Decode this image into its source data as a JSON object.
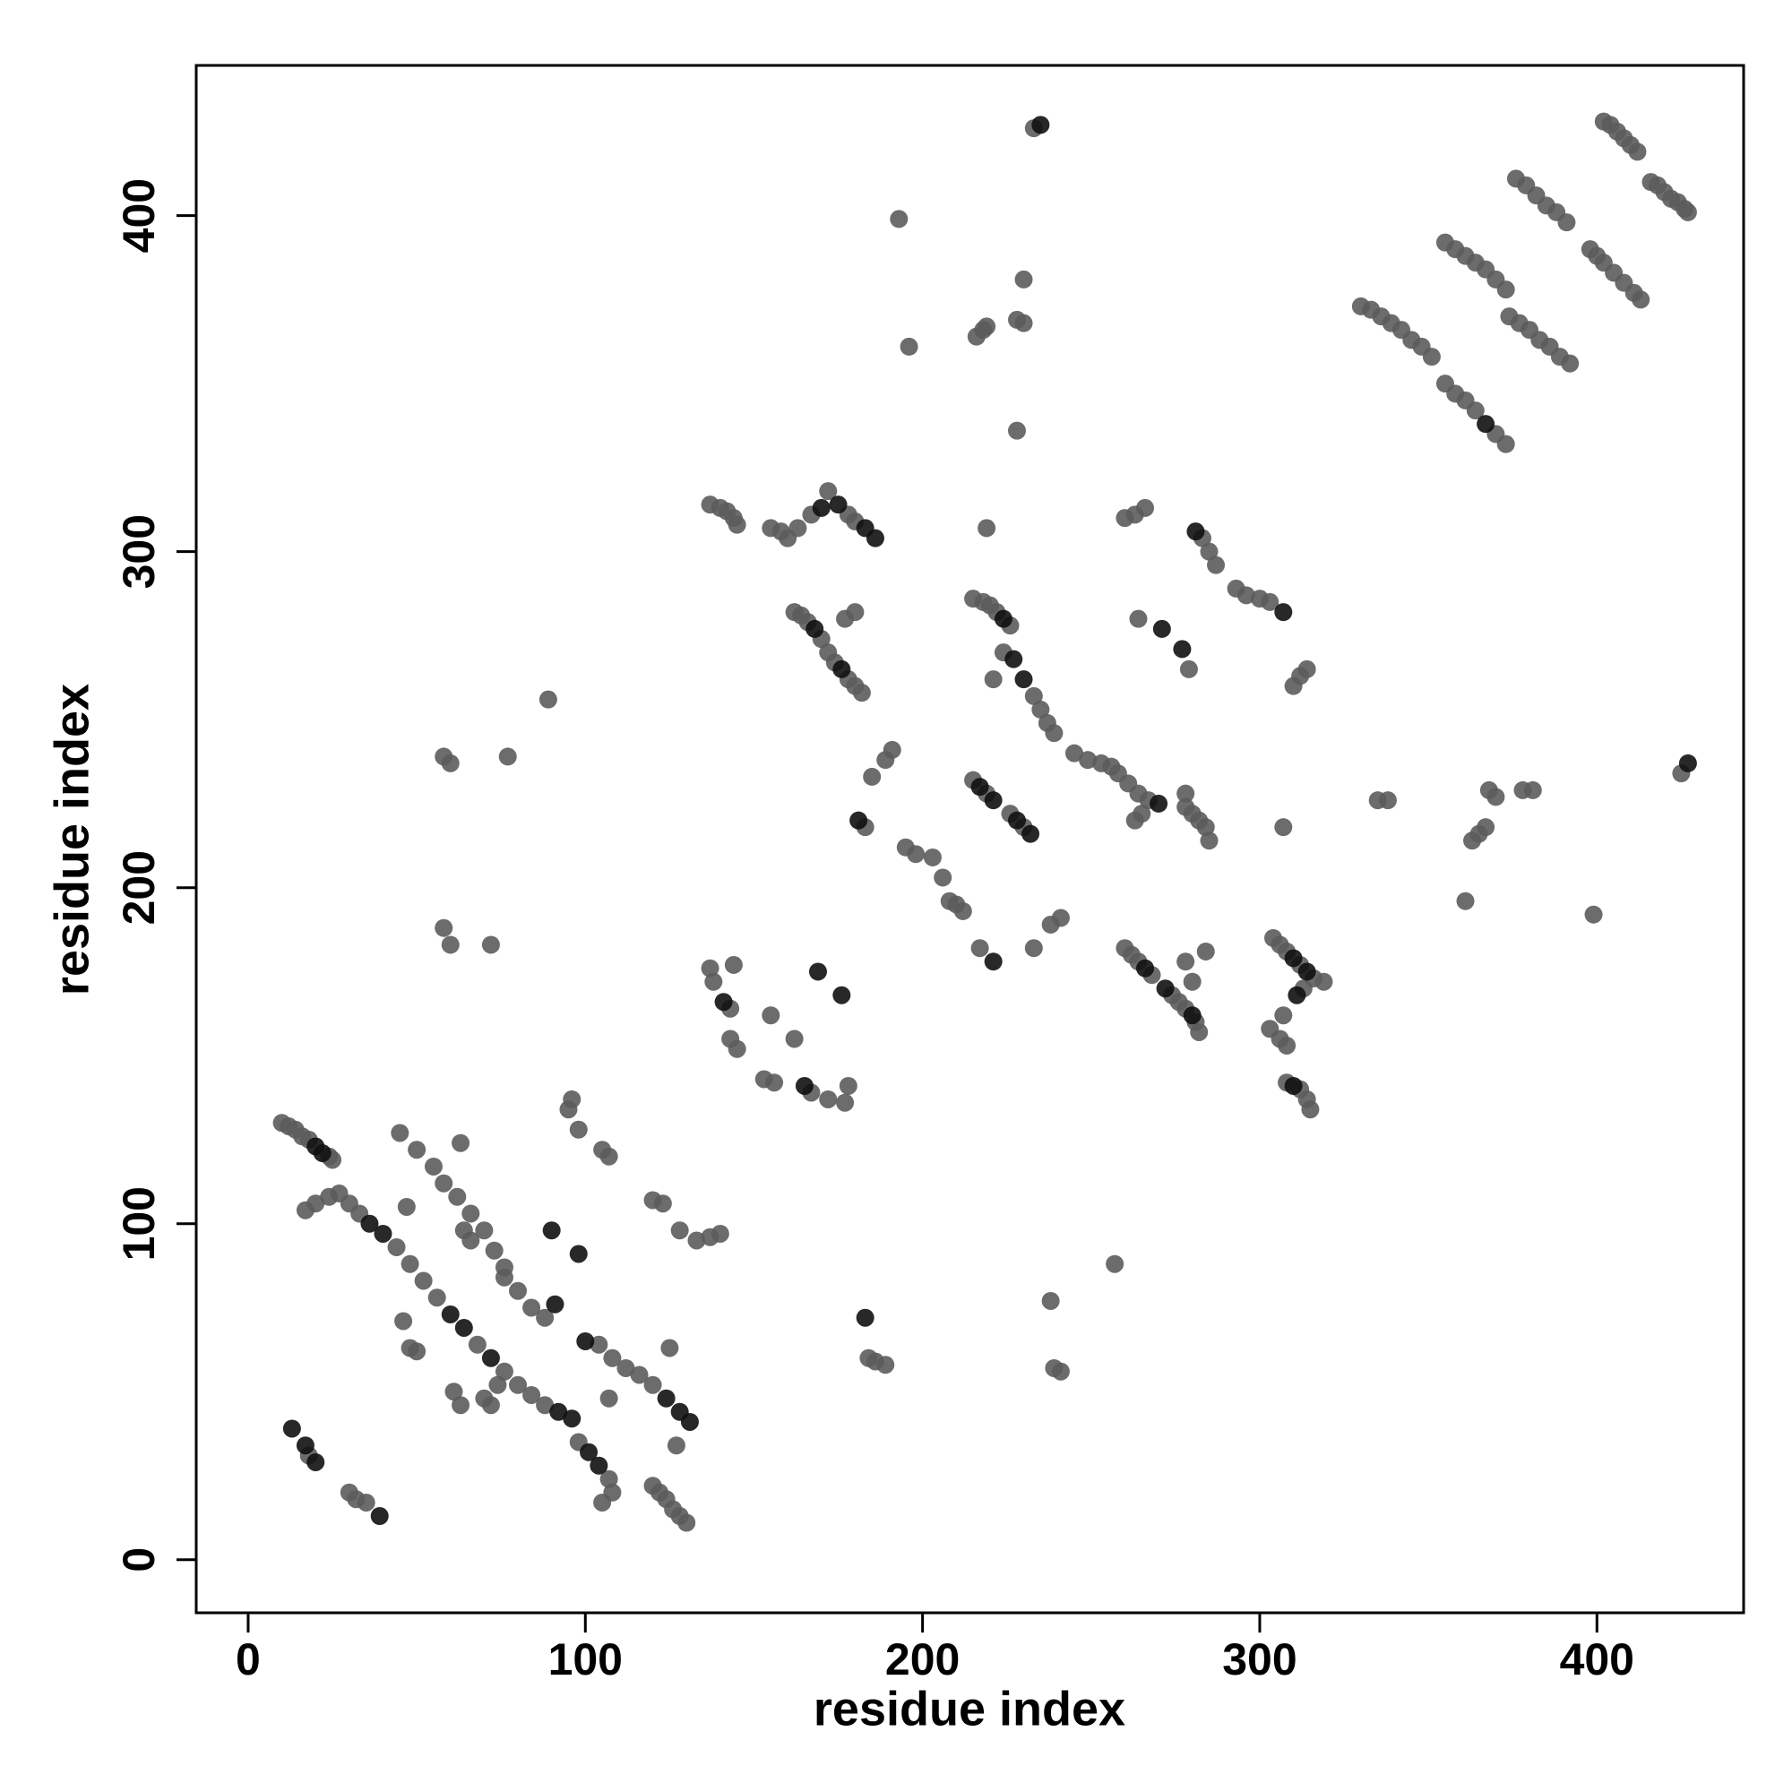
{
  "chart_data": {
    "type": "scatter",
    "xlabel": "residue index",
    "ylabel": "residue index",
    "xlim": [
      -15.4,
      443.5
    ],
    "ylim": [
      -15.8,
      444.7
    ],
    "xticks": [
      0,
      100,
      200,
      300,
      400
    ],
    "yticks": [
      0,
      100,
      200,
      300,
      400
    ],
    "series": [
      {
        "color": "#5c5c5c",
        "x": [
          10,
          12,
          14,
          16,
          18,
          24,
          25,
          17,
          20,
          24,
          27,
          30,
          33,
          45,
          50,
          55,
          58,
          62,
          66,
          70,
          73,
          76,
          80,
          84,
          88,
          104,
          108,
          112,
          116,
          120,
          44,
          48,
          52,
          56,
          68,
          76,
          80,
          84,
          88,
          98,
          107,
          108,
          105,
          120,
          122,
          124,
          126,
          128,
          130,
          18,
          30,
          32,
          35,
          46,
          48,
          50,
          47,
          63,
          64,
          66,
          70,
          72,
          74,
          76,
          96,
          98,
          105,
          107,
          107,
          120,
          123,
          125,
          127,
          128,
          133,
          137,
          140,
          63,
          61,
          72,
          58,
          60,
          58,
          60,
          77,
          89,
          95,
          137,
          138,
          143,
          144,
          143,
          145,
          153,
          155,
          156,
          162,
          167,
          172,
          177,
          178,
          184,
          186,
          189,
          137,
          140,
          142,
          144,
          145,
          155,
          158,
          160,
          163,
          167,
          172,
          178,
          180,
          162,
          164,
          166,
          170,
          172,
          174,
          178,
          180,
          182,
          177,
          180,
          183,
          185,
          189,
          191,
          193,
          196,
          195,
          198,
          203,
          206,
          208,
          210,
          212,
          215,
          218,
          220,
          222,
          226,
          219,
          221,
          224,
          233,
          235,
          237,
          239,
          216,
          218,
          219,
          228,
          230,
          230,
          228,
          233,
          215,
          219,
          226,
          230,
          217,
          233,
          238,
          241,
          238,
          239,
          241,
          257,
          245,
          249,
          253,
          256,
          258,
          261,
          264,
          267,
          263,
          265,
          278,
          280,
          282,
          284,
          285,
          278,
          264,
          279,
          260,
          262,
          264,
          268,
          274,
          276,
          278,
          281,
          282,
          284,
          278,
          280,
          260,
          263,
          266,
          283,
          285,
          287,
          293,
          296,
          300,
          303,
          310,
          312,
          314,
          307,
          304,
          306,
          308,
          312,
          316,
          319,
          313,
          307,
          303,
          306,
          308,
          308,
          312,
          314,
          315,
          330,
          333,
          336,
          339,
          342,
          345,
          348,
          351,
          355,
          358,
          361,
          364,
          367,
          370,
          373,
          355,
          358,
          361,
          364,
          370,
          373,
          376,
          379,
          382,
          385,
          388,
          391,
          374,
          377,
          380,
          383,
          386,
          389,
          392,
          402,
          404,
          406,
          408,
          410,
          412,
          398,
          400,
          402,
          405,
          408,
          411,
          413,
          416,
          418,
          420,
          422,
          424,
          426,
          427,
          335,
          338,
          361,
          363,
          365,
          367,
          368,
          370,
          378,
          381,
          399,
          425
        ],
        "y": [
          130,
          129,
          128,
          126,
          125,
          120,
          119,
          104,
          106,
          108,
          109,
          106,
          103,
          127,
          122,
          117,
          112,
          108,
          103,
          98,
          92,
          87,
          80,
          75,
          72,
          64,
          60,
          57,
          55,
          52,
          93,
          88,
          83,
          78,
          64,
          56,
          52,
          49,
          46,
          35,
          24,
          20,
          17,
          22,
          20,
          18,
          15,
          13,
          11,
          31,
          20,
          18,
          17,
          71,
          63,
          62,
          105,
          124,
          98,
          95,
          48,
          46,
          52,
          84,
          137,
          128,
          122,
          120,
          48,
          107,
          106,
          63,
          34,
          98,
          95,
          96,
          97,
          46,
          50,
          183,
          188,
          183,
          239,
          237,
          239,
          256,
          134,
          176,
          172,
          164,
          177,
          155,
          152,
          143,
          162,
          142,
          155,
          139,
          137,
          136,
          141,
          60,
          59,
          58,
          314,
          313,
          312,
          310,
          308,
          307,
          306,
          304,
          307,
          311,
          318,
          311,
          309,
          282,
          281,
          279,
          274,
          270,
          267,
          262,
          260,
          258,
          280,
          282,
          218,
          233,
          238,
          241,
          399,
          361,
          212,
          210,
          209,
          203,
          196,
          195,
          193,
          286,
          285,
          284,
          282,
          278,
          307,
          262,
          270,
          257,
          253,
          249,
          246,
          364,
          366,
          367,
          369,
          368,
          381,
          336,
          426,
          232,
          228,
          222,
          218,
          182,
          182,
          189,
          191,
          77,
          57,
          56,
          88,
          240,
          238,
          237,
          236,
          234,
          231,
          228,
          226,
          220,
          222,
          224,
          222,
          220,
          218,
          214,
          228,
          280,
          265,
          182,
          180,
          178,
          174,
          168,
          166,
          164,
          160,
          157,
          181,
          178,
          172,
          310,
          311,
          313,
          304,
          300,
          296,
          289,
          287,
          286,
          285,
          260,
          263,
          265,
          218,
          185,
          183,
          181,
          177,
          173,
          172,
          170,
          162,
          158,
          155,
          153,
          142,
          140,
          137,
          134,
          373,
          372,
          370,
          368,
          366,
          363,
          361,
          358,
          392,
          390,
          388,
          386,
          384,
          381,
          378,
          350,
          347,
          345,
          342,
          335,
          332,
          411,
          409,
          406,
          403,
          401,
          398,
          370,
          368,
          366,
          363,
          361,
          358,
          356,
          428,
          427,
          425,
          423,
          421,
          419,
          390,
          388,
          386,
          383,
          380,
          377,
          375,
          410,
          409,
          407,
          405,
          404,
          402,
          401,
          226,
          226,
          196,
          214,
          216,
          218,
          229,
          227,
          229,
          229,
          192,
          234
        ]
      },
      {
        "color": "#111111",
        "x": [
          13,
          17,
          20,
          39,
          20,
          22,
          36,
          40,
          60,
          64,
          72,
          90,
          91,
          92,
          96,
          98,
          100,
          101,
          104,
          124,
          128,
          131,
          141,
          165,
          169,
          176,
          170,
          175,
          183,
          186,
          168,
          176,
          181,
          183,
          217,
          221,
          228,
          232,
          221,
          224,
          227,
          230,
          235,
          270,
          271,
          277,
          266,
          272,
          280,
          281,
          307,
          310,
          314,
          311,
          310,
          367,
          427
        ],
        "y": [
          39,
          34,
          29,
          13,
          123,
          121,
          100,
          97,
          73,
          69,
          60,
          98,
          76,
          44,
          42,
          91,
          65,
          32,
          28,
          48,
          44,
          41,
          166,
          141,
          175,
          168,
          313,
          314,
          307,
          304,
          277,
          265,
          220,
          72,
          230,
          226,
          220,
          216,
          178,
          280,
          268,
          262,
          427,
          225,
          277,
          271,
          176,
          170,
          162,
          306,
          282,
          179,
          175,
          168,
          141,
          338,
          237
        ]
      }
    ]
  }
}
